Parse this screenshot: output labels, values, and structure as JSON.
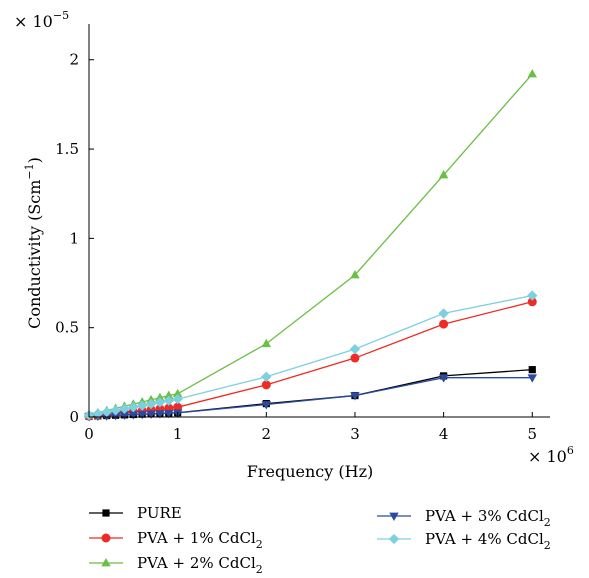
{
  "chart_data": {
    "type": "line",
    "xlabel": "Frequency (Hz)",
    "ylabel": "Conductivity (Scm",
    "ylabel_sup": "−1",
    "ylabel_close": ")",
    "x_multiplier": "× 10",
    "x_multiplier_exp": "6",
    "y_multiplier": "× 10",
    "y_multiplier_exp": "−5",
    "xlim": [
      0,
      5.2
    ],
    "ylim": [
      0,
      2.2
    ],
    "x_ticks": [
      0,
      1,
      2,
      3,
      4,
      5
    ],
    "x_tick_labels": [
      "0",
      "1",
      "2",
      "3",
      "4",
      "5"
    ],
    "y_ticks": [
      0,
      0.5,
      1,
      1.5,
      2
    ],
    "y_tick_labels": [
      "0",
      "0.5",
      "1",
      "1.5",
      "2"
    ],
    "grid": false,
    "legend_position": "bottom",
    "x": [
      0.0,
      0.1,
      0.2,
      0.3,
      0.4,
      0.5,
      0.6,
      0.7,
      0.8,
      0.9,
      1.0,
      2.0,
      3.0,
      4.0,
      5.0
    ],
    "series": [
      {
        "name": "PURE",
        "name_sub": "",
        "color": "#000000",
        "marker": "square",
        "values": [
          0.004,
          0.006,
          0.008,
          0.01,
          0.012,
          0.014,
          0.016,
          0.018,
          0.02,
          0.022,
          0.024,
          0.075,
          0.12,
          0.23,
          0.265
        ]
      },
      {
        "name": "PVA + 1% CdCl",
        "name_sub": "2",
        "color": "#ee2b24",
        "marker": "circle",
        "values": [
          0.005,
          0.01,
          0.015,
          0.02,
          0.025,
          0.03,
          0.035,
          0.04,
          0.045,
          0.05,
          0.055,
          0.18,
          0.33,
          0.52,
          0.645
        ]
      },
      {
        "name": "PVA + 2% CdCl",
        "name_sub": "2",
        "color": "#6abf45",
        "marker": "triangle-up",
        "values": [
          0.012,
          0.024,
          0.036,
          0.048,
          0.06,
          0.072,
          0.084,
          0.096,
          0.108,
          0.12,
          0.13,
          0.41,
          0.795,
          1.355,
          1.92
        ]
      },
      {
        "name": "PVA + 3% CdCl",
        "name_sub": "2",
        "color": "#2a4a9e",
        "marker": "triangle-down",
        "values": [
          0.003,
          0.005,
          0.007,
          0.009,
          0.011,
          0.013,
          0.015,
          0.017,
          0.019,
          0.021,
          0.023,
          0.07,
          0.12,
          0.22,
          0.22
        ]
      },
      {
        "name": "PVA + 4% CdCl",
        "name_sub": "2",
        "color": "#7dd0e0",
        "marker": "diamond",
        "values": [
          0.01,
          0.019,
          0.028,
          0.037,
          0.046,
          0.055,
          0.064,
          0.073,
          0.082,
          0.091,
          0.1,
          0.225,
          0.38,
          0.58,
          0.68
        ]
      }
    ]
  }
}
